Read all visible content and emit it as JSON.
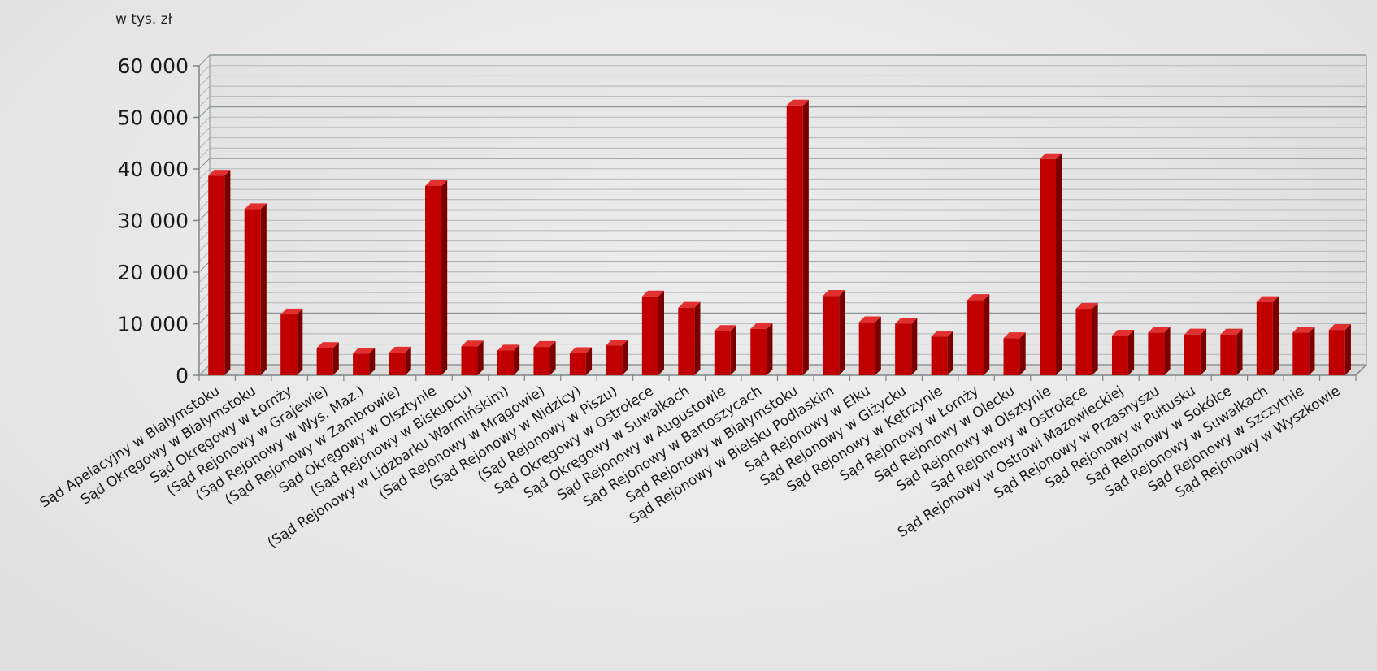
{
  "chart_data": {
    "type": "bar",
    "unit_label": "w tys. zł",
    "title": "",
    "xlabel": "",
    "ylabel": "",
    "ylim": [
      0,
      60000
    ],
    "yticks": [
      0,
      10000,
      20000,
      30000,
      40000,
      50000,
      60000
    ],
    "ytick_labels": [
      "0",
      "10 000",
      "20 000",
      "30 000",
      "40 000",
      "50 000",
      "60 000"
    ],
    "grid": true,
    "bar_color": "#c00000",
    "categories": [
      "Sąd Apelacyjny w Białymstoku",
      "Sąd Okręgowy w Białymstoku",
      "Sąd Okręgowy w Łomży",
      "(Sąd Rejonowy w Grajewie)",
      "(Sąd Rejonowy w Wys. Maz.)",
      "(Sąd Rejonowy w Zambrowie)",
      "Sąd Okręgowy w Olsztynie",
      "(Sąd Rejonowy w Biskupcu)",
      "(Sąd Rejonowy w Lidzbarku Warmińskim)",
      "(Sąd Rejonowy w Mrągowie)",
      "(Sąd Rejonowy w Nidzicy)",
      "(Sąd Rejonowy w Piszu)",
      "Sąd Okręgowy w Ostrołęce",
      "Sąd Okręgowy w Suwałkach",
      "Sąd Rejonowy w Augustowie",
      "Sąd Rejonowy w Bartoszycach",
      "Sąd Rejonowy w Białymstoku",
      "Sąd Rejonowy w Bielsku Podlaskim",
      "Sąd Rejonowy w Ełku",
      "Sąd Rejonowy w Giżycku",
      "Sąd Rejonowy w Kętrzynie",
      "Sąd Rejonowy w Łomży",
      "Sąd Rejonowy w Olecku",
      "Sąd Rejonowy w Olsztynie",
      "Sąd Rejonowy w Ostrołęce",
      "Sąd Rejonowy w Ostrowi Mazowieckiej",
      "Sąd Rejonowy w Przasnyszu",
      "Sąd Rejonowy w Pułtusku",
      "Sąd Rejonowy w Sokółce",
      "Sąd Rejonowy w Suwałkach",
      "Sąd Rejonowy w Szczytnie",
      "Sąd Rejonowy w Wyszkowie"
    ],
    "values": [
      38700,
      32200,
      11800,
      5300,
      4200,
      4400,
      36700,
      5600,
      4800,
      5500,
      4300,
      5800,
      15300,
      13100,
      8600,
      9000,
      52300,
      15400,
      10300,
      10000,
      7500,
      14600,
      7200,
      41900,
      12900,
      7700,
      8300,
      7900,
      7900,
      14200,
      8300,
      8800
    ]
  }
}
